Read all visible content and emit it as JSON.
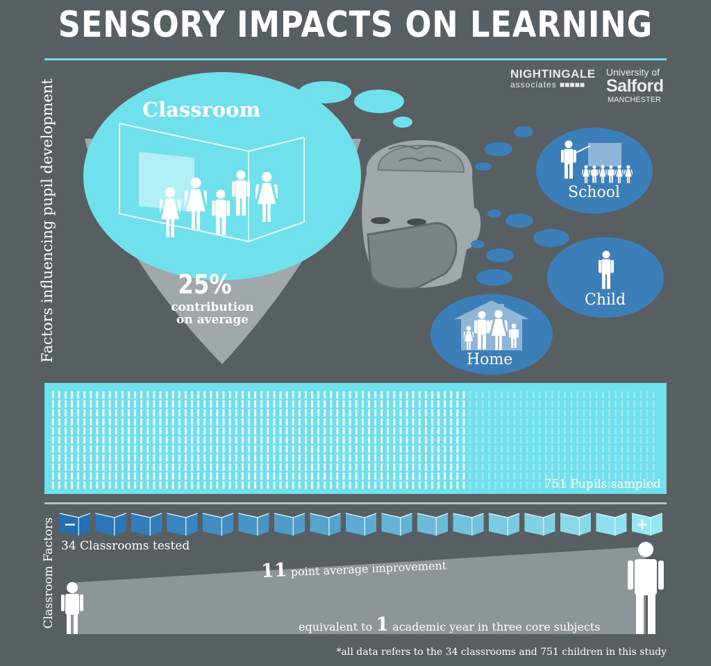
{
  "title": "SENSORY IMPACTS ON LEARNING",
  "left_label": "Factors influencing pupil development",
  "left_label_bottom": "Classroom Factors",
  "brands": {
    "nightingale": "NIGHTINGALE",
    "nightingale_sub": "associates",
    "university_line1": "University of",
    "university_line2": "Salford",
    "university_line3": "MANCHESTER"
  },
  "classroom": {
    "title": "Classroom",
    "percent": "25%",
    "sub_line1": "contribution",
    "sub_line2": "on average"
  },
  "bubbles": {
    "school": "School",
    "child": "Child",
    "home": "Home"
  },
  "pupils": {
    "label": "751 Pupils sampled",
    "count": 751
  },
  "classrooms": {
    "label": "34 Classrooms tested",
    "count": 34,
    "minus": "−",
    "plus": "+"
  },
  "improvement": {
    "number": "11",
    "text": "point average improvement",
    "equiv_prefix": "equivalent to",
    "equiv_number": "1",
    "equiv_suffix": "academic year in three core subjects"
  },
  "footnote": "*all data refers to the 34 classrooms and 751 children in this study",
  "colors": {
    "background": "#575f62",
    "cyan": "#6fe0ec",
    "blue": "#3c7fb8",
    "grey": "#a1a8ab"
  }
}
